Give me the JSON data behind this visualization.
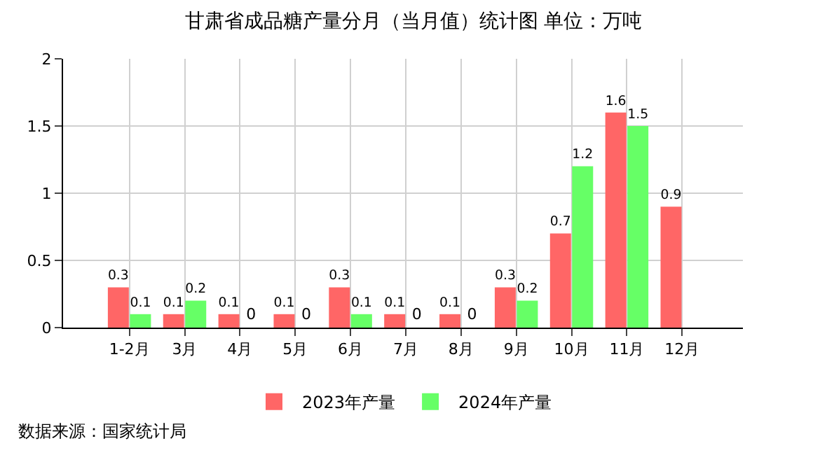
{
  "chart_data": {
    "type": "bar",
    "title": "甘肃省成品糖产量分月（当月值）统计图 单位：万吨",
    "categories": [
      "1-2月",
      "3月",
      "4月",
      "5月",
      "6月",
      "7月",
      "8月",
      "9月",
      "10月",
      "11月",
      "12月"
    ],
    "series": [
      {
        "name": "2023年产量",
        "color": "#ff6666",
        "values": [
          0.3,
          0.1,
          0.1,
          0.1,
          0.3,
          0.1,
          0.1,
          0.3,
          0.7,
          1.6,
          0.9
        ]
      },
      {
        "name": "2024年产量",
        "color": "#66ff66",
        "values": [
          0.1,
          0.2,
          0,
          0,
          0.1,
          0,
          0,
          0.2,
          1.2,
          1.5,
          null
        ]
      }
    ],
    "ylim": [
      0,
      2
    ],
    "yticks": [
      0,
      0.5,
      1,
      1.5,
      2
    ],
    "grid": true,
    "legend": "bottom",
    "data_labels": true,
    "annotations": [
      "数据来源：国家统计局"
    ]
  }
}
